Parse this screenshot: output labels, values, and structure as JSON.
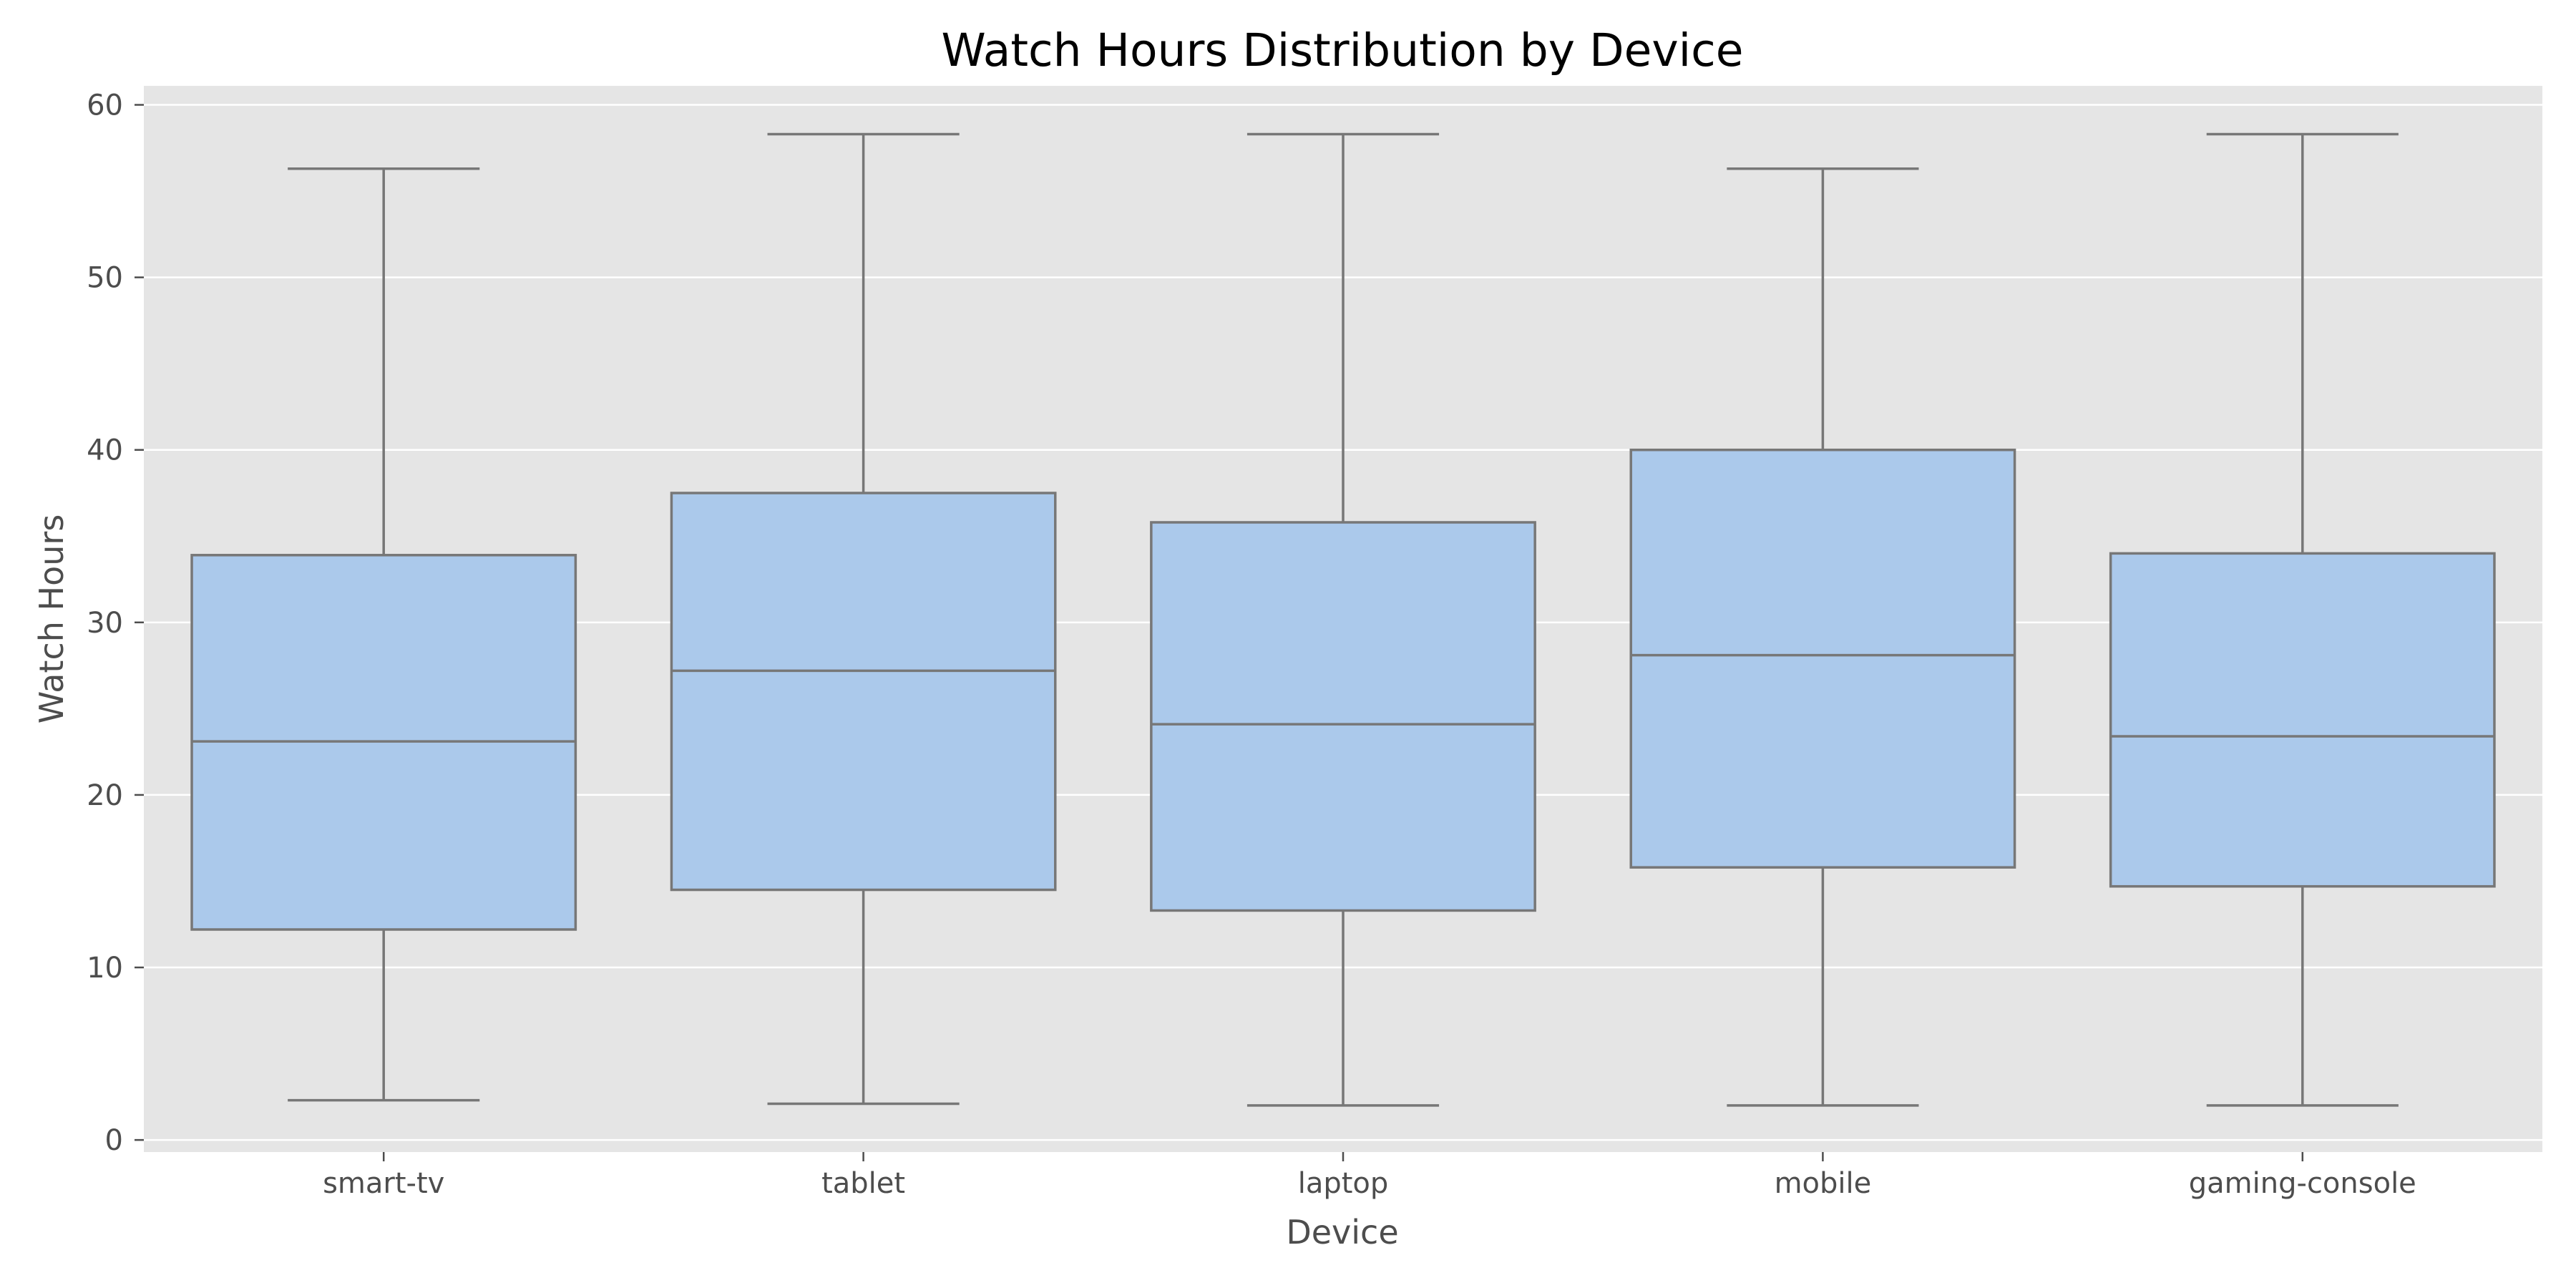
{
  "chart_data": {
    "type": "box",
    "title": "Watch Hours Distribution by Device",
    "xlabel": "Device",
    "ylabel": "Watch Hours",
    "ylim": [
      -0.7,
      61.1
    ],
    "yticks": [
      0,
      10,
      20,
      30,
      40,
      50,
      60
    ],
    "grid": true,
    "categories": [
      "smart-tv",
      "tablet",
      "laptop",
      "mobile",
      "gaming-console"
    ],
    "boxes": [
      {
        "category": "smart-tv",
        "whisker_low": 2.3,
        "q1": 12.2,
        "median": 23.1,
        "q3": 33.9,
        "whisker_high": 56.3
      },
      {
        "category": "tablet",
        "whisker_low": 2.1,
        "q1": 14.5,
        "median": 27.2,
        "q3": 37.5,
        "whisker_high": 58.3
      },
      {
        "category": "laptop",
        "whisker_low": 2.0,
        "q1": 13.3,
        "median": 24.1,
        "q3": 35.8,
        "whisker_high": 58.3
      },
      {
        "category": "mobile",
        "whisker_low": 2.0,
        "q1": 15.8,
        "median": 28.1,
        "q3": 40.0,
        "whisker_high": 56.3
      },
      {
        "category": "gaming-console",
        "whisker_low": 2.0,
        "q1": 14.7,
        "median": 23.4,
        "q3": 34.0,
        "whisker_high": 58.3
      }
    ],
    "colors": {
      "plot_background": "#e5e5e5",
      "grid": "#ffffff",
      "box_fill": "#abc9eb",
      "box_line": "#777777",
      "tick_color": "#4d4d4d"
    }
  }
}
